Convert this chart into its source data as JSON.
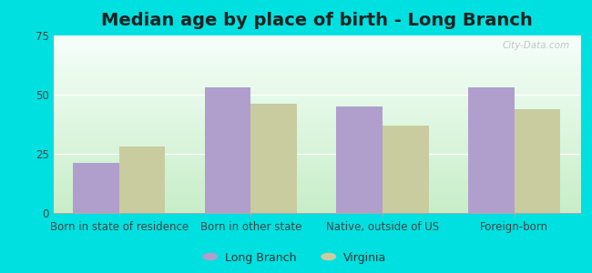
{
  "title": "Median age by place of birth - Long Branch",
  "categories": [
    "Born in state of residence",
    "Born in other state",
    "Native, outside of US",
    "Foreign-born"
  ],
  "long_branch_values": [
    21,
    53,
    45,
    53
  ],
  "virginia_values": [
    28,
    46,
    37,
    44
  ],
  "long_branch_color": "#b09fcc",
  "virginia_color": "#c8cc9f",
  "background_outer": "#00e0e0",
  "background_inner_top": "#f5fffa",
  "background_inner_bottom": "#c8eec8",
  "ylim": [
    0,
    75
  ],
  "yticks": [
    0,
    25,
    50,
    75
  ],
  "legend_labels": [
    "Long Branch",
    "Virginia"
  ],
  "bar_width": 0.35,
  "title_fontsize": 14,
  "tick_fontsize": 8.5,
  "legend_fontsize": 9,
  "grid_color": "#ddeedd",
  "watermark": "City-Data.com"
}
